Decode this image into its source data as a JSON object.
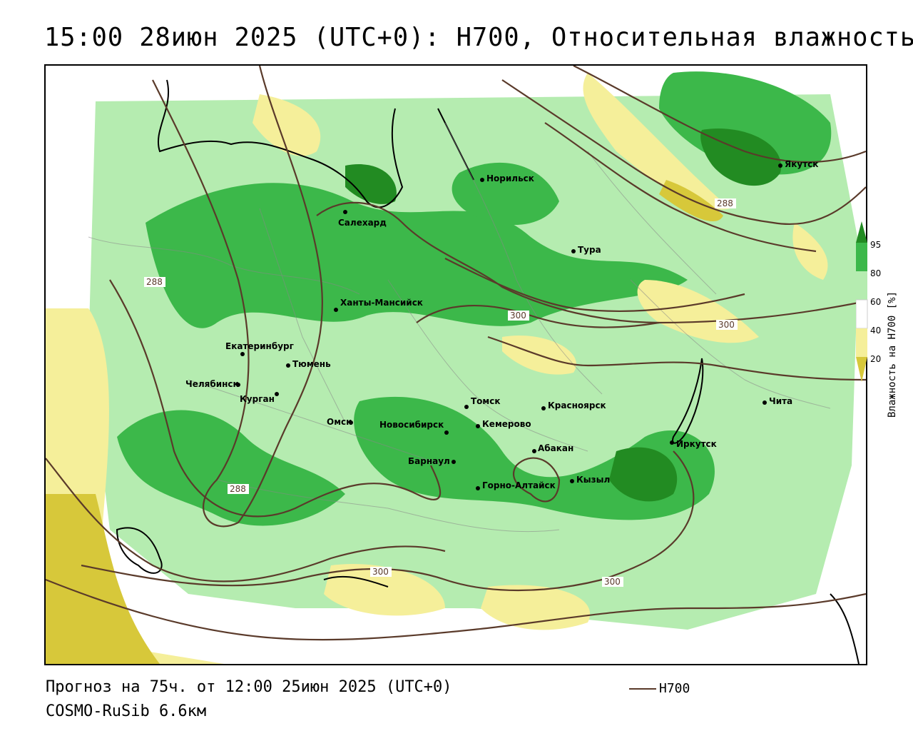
{
  "header": {
    "title": "15:00 28июн 2025 (UTC+0): H700, Относительная влажность"
  },
  "footer": {
    "forecast": "Прогноз на 75ч. от 12:00 25июн 2025 (UTC+0)",
    "model": "COSMO-RuSib 6.6км",
    "line_legend": "H700"
  },
  "legend": {
    "title": "Влажность на H700 [%]",
    "ticks": [
      "95",
      "80",
      "60",
      "40",
      "20"
    ],
    "colors": {
      "c95": "#228b22",
      "c80": "#3cb84a",
      "c60": "#b5ecb0",
      "c40": "#ffffff",
      "c20": "#f5ef9a",
      "c0": "#d7c83a"
    }
  },
  "map": {
    "contour_color": "#5a3a2a",
    "contour_labels": [
      "288",
      "288",
      "288",
      "300",
      "300",
      "300",
      "300"
    ],
    "cities": [
      {
        "name": "Салехард"
      },
      {
        "name": "Норильск"
      },
      {
        "name": "Якутск"
      },
      {
        "name": "Тура"
      },
      {
        "name": "Ханты-Мансийск"
      },
      {
        "name": "Екатеринбург"
      },
      {
        "name": "Тюмень"
      },
      {
        "name": "Челябинск"
      },
      {
        "name": "Курган"
      },
      {
        "name": "Омск"
      },
      {
        "name": "Новосибирск"
      },
      {
        "name": "Томск"
      },
      {
        "name": "Кемерово"
      },
      {
        "name": "Красноярск"
      },
      {
        "name": "Барнаул"
      },
      {
        "name": "Абакан"
      },
      {
        "name": "Горно-Алтайск"
      },
      {
        "name": "Кызыл"
      },
      {
        "name": "Иркутск"
      },
      {
        "name": "Чита"
      }
    ]
  }
}
